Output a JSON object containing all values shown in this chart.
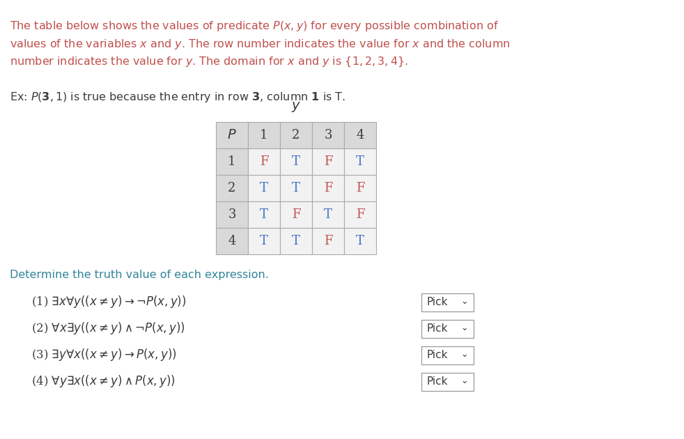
{
  "title_lines": [
    "The table below shows the values of predicate $P(x, y)$ for every possible combination of",
    "values of the variables $x$ and $y$. The row number indicates the value for $x$ and the column",
    "number indicates the value for $y$. The domain for $x$ and $y$ is $\\{1, 2, 3, 4\\}$."
  ],
  "example_line": "Ex: $P(\\mathbf{3}, 1)$ is true because the entry in row $\\mathbf{3}$, column $\\mathbf{1}$ is T.",
  "determine_text": "Determine the truth value of each expression.",
  "table_header": [
    "$P$",
    "1",
    "2",
    "3",
    "4"
  ],
  "table_rows": [
    [
      "1",
      "F",
      "T",
      "F",
      "T"
    ],
    [
      "2",
      "T",
      "T",
      "F",
      "F"
    ],
    [
      "3",
      "T",
      "F",
      "T",
      "F"
    ],
    [
      "4",
      "T",
      "T",
      "F",
      "T"
    ]
  ],
  "expressions": [
    "(1) $\\exists x\\forall y((x \\neq y) \\rightarrow \\neg P(x, y))$",
    "(2) $\\forall x\\exists y((x \\neq y) \\wedge \\neg P(x, y))$",
    "(3) $\\exists y\\forall x((x \\neq y) \\rightarrow P(x, y))$",
    "(4) $\\forall y\\exists x((x \\neq y) \\wedge P(x, y))$"
  ],
  "text_color": "#3c3c3c",
  "orange_color": "#C0504D",
  "blue_text_color": "#4472C4",
  "teal_color": "#31849B",
  "background": "#FFFFFF",
  "table_bg_header": "#D9D9D9",
  "table_bg_cell": "#F2F2F2",
  "table_border": "#AAAAAA",
  "T_color": "#4472C4",
  "F_color": "#C0504D",
  "expr_num_color": "#C0504D",
  "pick_border": "#999999"
}
